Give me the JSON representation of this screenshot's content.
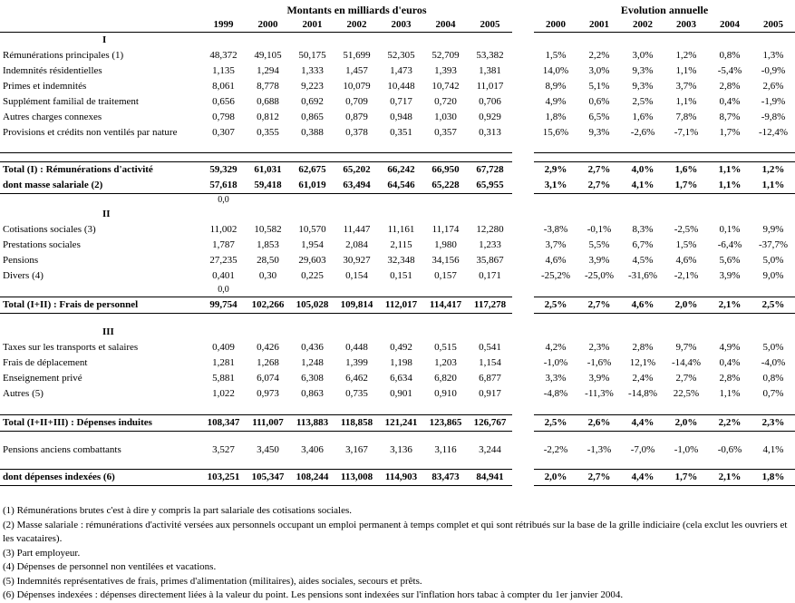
{
  "table": {
    "amounts_title": "Montants en milliards d'euros",
    "evolution_title": "Evolution annuelle",
    "amount_years": [
      "1999",
      "2000",
      "2001",
      "2002",
      "2003",
      "2004",
      "2005"
    ],
    "evolution_years": [
      "2000",
      "2001",
      "2002",
      "2003",
      "2004",
      "2005"
    ],
    "rows": [
      {
        "t": "sect",
        "label": "I"
      },
      {
        "t": "d",
        "label": "Rémunérations principales (1)",
        "a": [
          "48,372",
          "49,105",
          "50,175",
          "51,699",
          "52,305",
          "52,709",
          "53,382"
        ],
        "e": [
          "1,5%",
          "2,2%",
          "3,0%",
          "1,2%",
          "0,8%",
          "1,3%"
        ]
      },
      {
        "t": "d",
        "label": "Indemnités résidentielles",
        "a": [
          "1,135",
          "1,294",
          "1,333",
          "1,457",
          "1,473",
          "1,393",
          "1,381"
        ],
        "e": [
          "14,0%",
          "3,0%",
          "9,3%",
          "1,1%",
          "-5,4%",
          "-0,9%"
        ]
      },
      {
        "t": "d",
        "label": "Primes et indemnités",
        "a": [
          "8,061",
          "8,778",
          "9,223",
          "10,079",
          "10,448",
          "10,742",
          "11,017"
        ],
        "e": [
          "8,9%",
          "5,1%",
          "9,3%",
          "3,7%",
          "2,8%",
          "2,6%"
        ]
      },
      {
        "t": "d",
        "label": "Supplément familial de traitement",
        "a": [
          "0,656",
          "0,688",
          "0,692",
          "0,709",
          "0,717",
          "0,720",
          "0,706"
        ],
        "e": [
          "4,9%",
          "0,6%",
          "2,5%",
          "1,1%",
          "0,4%",
          "-1,9%"
        ]
      },
      {
        "t": "d",
        "label": "Autres charges connexes",
        "a": [
          "0,798",
          "0,812",
          "0,865",
          "0,879",
          "0,948",
          "1,030",
          "0,929"
        ],
        "e": [
          "1,8%",
          "6,5%",
          "1,6%",
          "7,8%",
          "8,7%",
          "-9,8%"
        ]
      },
      {
        "t": "d",
        "label": "Provisions et crédits non ventilés par nature",
        "a": [
          "0,307",
          "0,355",
          "0,388",
          "0,378",
          "0,351",
          "0,357",
          "0,313"
        ],
        "e": [
          "15,6%",
          "9,3%",
          "-2,6%",
          "-7,1%",
          "1,7%",
          "-12,4%"
        ]
      },
      {
        "t": "sp",
        "h": 14,
        "bb": true
      },
      {
        "t": "sp",
        "h": 10,
        "bb": true
      },
      {
        "t": "total",
        "label": "Total (I) : Rémunérations  d'activité",
        "a": [
          "59,329",
          "61,031",
          "62,675",
          "65,202",
          "66,242",
          "66,950",
          "67,728"
        ],
        "e": [
          "2,9%",
          "2,7%",
          "4,0%",
          "1,6%",
          "1,1%",
          "1,2%"
        ]
      },
      {
        "t": "total",
        "label": "dont masse salariale (2)",
        "a": [
          "57,618",
          "59,418",
          "61,019",
          "63,494",
          "64,546",
          "65,228",
          "65,955"
        ],
        "e": [
          "3,1%",
          "2,7%",
          "4,1%",
          "1,7%",
          "1,1%",
          "1,1%"
        ],
        "bb": true
      },
      {
        "t": "d",
        "label": "",
        "a": [
          "0,0",
          "",
          "",
          "",
          "",
          "",
          ""
        ],
        "e": [
          "",
          "",
          "",
          "",
          "",
          ""
        ],
        "small": true
      },
      {
        "t": "sect",
        "label": "II"
      },
      {
        "t": "d",
        "label": "Cotisations sociales (3)",
        "a": [
          "11,002",
          "10,582",
          "10,570",
          "11,447",
          "11,161",
          "11,174",
          "12,280"
        ],
        "e": [
          "-3,8%",
          "-0,1%",
          "8,3%",
          "-2,5%",
          "0,1%",
          "9,9%"
        ]
      },
      {
        "t": "d",
        "label": "Prestations sociales",
        "a": [
          "1,787",
          "1,853",
          "1,954",
          "2,084",
          "2,115",
          "1,980",
          "1,233"
        ],
        "e": [
          "3,7%",
          "5,5%",
          "6,7%",
          "1,5%",
          "-6,4%",
          "-37,7%"
        ]
      },
      {
        "t": "d",
        "label": "Pensions",
        "a": [
          "27,235",
          "28,50",
          "29,603",
          "30,927",
          "32,348",
          "34,156",
          "35,867"
        ],
        "e": [
          "4,6%",
          "3,9%",
          "4,5%",
          "4,6%",
          "5,6%",
          "5,0%"
        ]
      },
      {
        "t": "d",
        "label": "Divers (4)",
        "a": [
          "0,401",
          "0,30",
          "0,225",
          "0,154",
          "0,151",
          "0,157",
          "0,171"
        ],
        "e": [
          "-25,2%",
          "-25,0%",
          "-31,6%",
          "-2,1%",
          "3,9%",
          "9,0%"
        ]
      },
      {
        "t": "d",
        "label": "",
        "a": [
          "0,0",
          "",
          "",
          "",
          "",
          "",
          ""
        ],
        "e": [
          "",
          "",
          "",
          "",
          "",
          ""
        ],
        "small": true,
        "bb": true
      },
      {
        "t": "total",
        "label": "Total (I+II) : Frais de personnel",
        "a": [
          "99,754",
          "102,266",
          "105,028",
          "109,814",
          "112,017",
          "114,417",
          "117,278"
        ],
        "e": [
          "2,5%",
          "2,7%",
          "4,6%",
          "2,0%",
          "2,1%",
          "2,5%"
        ],
        "bb": true
      },
      {
        "t": "sp",
        "h": 12
      },
      {
        "t": "sect",
        "label": "III"
      },
      {
        "t": "d",
        "label": "Taxes sur les transports et salaires",
        "a": [
          "0,409",
          "0,426",
          "0,436",
          "0,448",
          "0,492",
          "0,515",
          "0,541"
        ],
        "e": [
          "4,2%",
          "2,3%",
          "2,8%",
          "9,7%",
          "4,9%",
          "5,0%"
        ]
      },
      {
        "t": "d",
        "label": "Frais de déplacement",
        "a": [
          "1,281",
          "1,268",
          "1,248",
          "1,399",
          "1,198",
          "1,203",
          "1,154"
        ],
        "e": [
          "-1,0%",
          "-1,6%",
          "12,1%",
          "-14,4%",
          "0,4%",
          "-4,0%"
        ]
      },
      {
        "t": "d",
        "label": "Enseignement privé",
        "a": [
          "5,881",
          "6,074",
          "6,308",
          "6,462",
          "6,634",
          "6,820",
          "6,877"
        ],
        "e": [
          "3,3%",
          "3,9%",
          "2,4%",
          "2,7%",
          "2,8%",
          "0,8%"
        ]
      },
      {
        "t": "d",
        "label": "Autres (5)",
        "a": [
          "1,022",
          "0,973",
          "0,863",
          "0,735",
          "0,901",
          "0,910",
          "0,917"
        ],
        "e": [
          "-4,8%",
          "-11,3%",
          "-14,8%",
          "22,5%",
          "1,1%",
          "0,7%"
        ]
      },
      {
        "t": "sp",
        "h": 15,
        "bb": true
      },
      {
        "t": "total",
        "label": "Total (I+II+III) : Dépenses induites",
        "a": [
          "108,347",
          "111,007",
          "113,883",
          "118,858",
          "121,241",
          "123,865",
          "126,767"
        ],
        "e": [
          "2,5%",
          "2,6%",
          "4,4%",
          "2,0%",
          "2,2%",
          "2,3%"
        ],
        "bb": true
      },
      {
        "t": "sp",
        "h": 12
      },
      {
        "t": "d",
        "label": "Pensions anciens combattants",
        "a": [
          "3,527",
          "3,450",
          "3,406",
          "3,167",
          "3,136",
          "3,116",
          "3,244"
        ],
        "e": [
          "-2,2%",
          "-1,3%",
          "-7,0%",
          "-1,0%",
          "-0,6%",
          "4,1%"
        ]
      },
      {
        "t": "sp",
        "h": 13,
        "bb": true
      },
      {
        "t": "total",
        "label": "dont dépenses indexées (6)",
        "a": [
          "103,251",
          "105,347",
          "108,244",
          "113,008",
          "114,903",
          "83,473",
          "84,941"
        ],
        "e": [
          "2,0%",
          "2,7%",
          "4,4%",
          "1,7%",
          "2,1%",
          "1,8%"
        ],
        "bb": true
      }
    ]
  },
  "footnotes": [
    "(1) Rémunérations brutes c'est à dire y compris la part salariale des cotisations sociales.",
    "(2) Masse salariale : rémunérations d'activité versées aux personnels occupant un emploi permanent à temps complet et qui sont rétribués sur la base de la grille indiciaire (cela exclut les ouvriers et les vacataires).",
    "(3) Part employeur.",
    "(4) Dépenses de personnel non ventilées et vacations.",
    "(5) Indemnités représentatives de frais, primes d'alimentation (militaires), aides sociales, secours et prêts.",
    "(6) Dépenses indexées : dépenses directement liées à la valeur du point. Les pensions sont indexées sur l'inflation hors tabac à compter du 1er janvier 2004."
  ]
}
